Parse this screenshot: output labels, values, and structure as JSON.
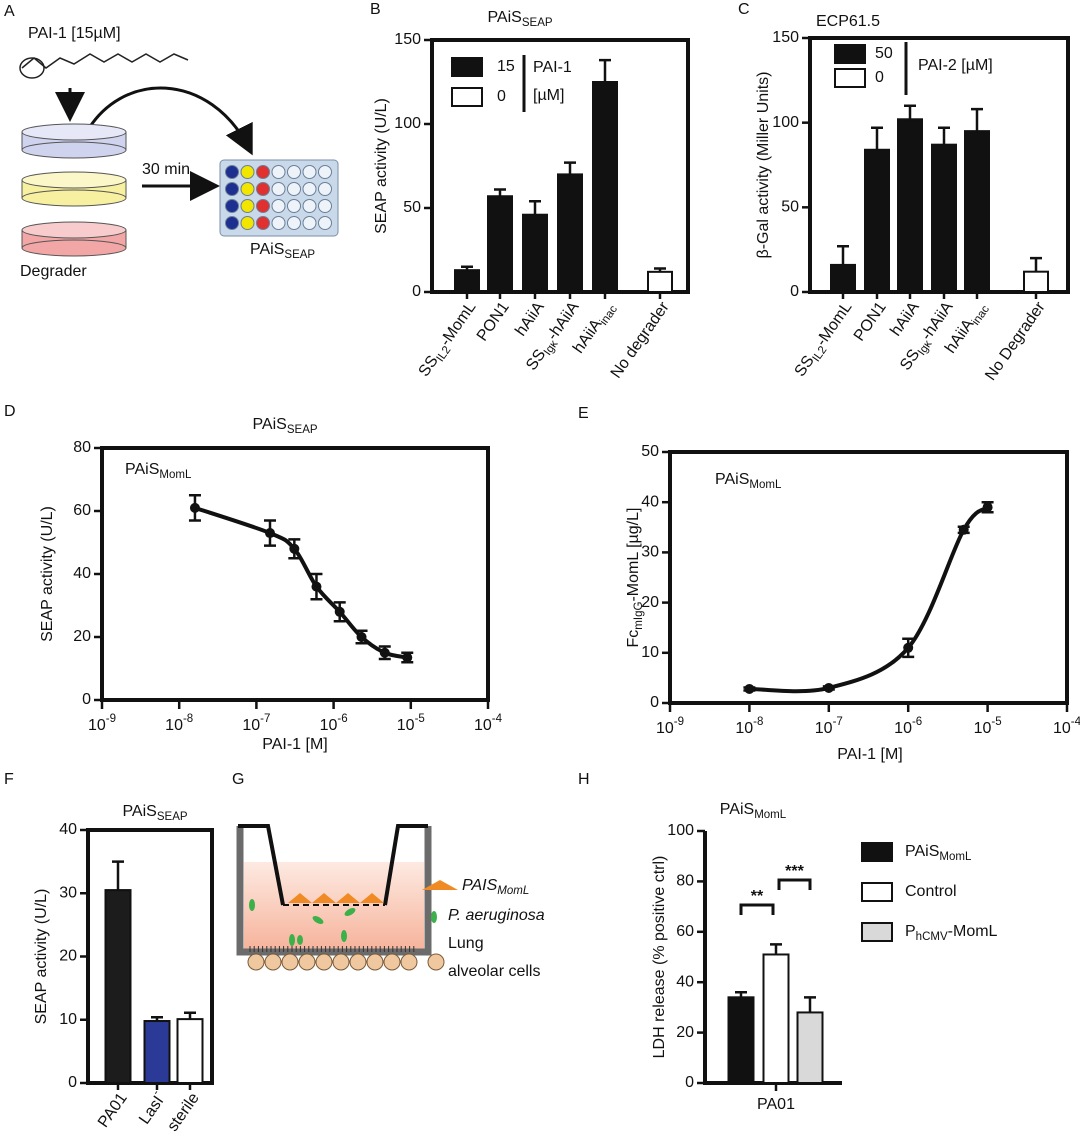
{
  "chart_data": [
    {
      "panel_label": "B",
      "type": "bar",
      "title": [
        {
          "text": "PAiS"
        },
        {
          "sub": "SEAP"
        }
      ],
      "ylabel": "SEAP activity (U/L)",
      "categories": [
        [
          {
            "text": "SS"
          },
          {
            "sub": "IL2"
          },
          {
            "text": "-MomL"
          }
        ],
        "PON1",
        "hAiiA",
        [
          {
            "text": "SS"
          },
          {
            "sub": "Igκ"
          },
          {
            "text": "-hAiiA"
          }
        ],
        [
          {
            "text": "hAiiA"
          },
          {
            "sub": "inac"
          }
        ],
        "No degrader"
      ],
      "series": [
        {
          "name": "15",
          "color": "#111111",
          "values": [
            13,
            57,
            46,
            70,
            125,
            null
          ],
          "errors": [
            2,
            4,
            8,
            7,
            13,
            null
          ]
        },
        {
          "name": "0",
          "color": "#ffffff",
          "values": [
            null,
            null,
            null,
            null,
            null,
            12
          ],
          "errors": [
            null,
            null,
            null,
            null,
            null,
            2
          ]
        }
      ],
      "legend_title": [
        "PAI-1",
        "[µM]"
      ],
      "ylim": [
        0,
        150
      ],
      "yticks": [
        0,
        50,
        100,
        150
      ]
    },
    {
      "panel_label": "C",
      "type": "bar",
      "title": "ECP61.5",
      "ylabel": "β-Gal activity (Miller Units)",
      "categories": [
        [
          {
            "text": "SS"
          },
          {
            "sub": "IL2"
          },
          {
            "text": "-MomL"
          }
        ],
        "PON1",
        "hAiiA",
        [
          {
            "text": "SS"
          },
          {
            "sub": "Igκ"
          },
          {
            "text": "-hAiiA"
          }
        ],
        [
          {
            "text": "hAiiA"
          },
          {
            "sub": "inac"
          }
        ],
        "No Degrader"
      ],
      "series": [
        {
          "name": "50",
          "color": "#111111",
          "values": [
            16,
            84,
            102,
            87,
            95,
            null
          ],
          "errors": [
            11,
            13,
            8,
            10,
            13,
            null
          ]
        },
        {
          "name": "0",
          "color": "#ffffff",
          "values": [
            null,
            null,
            null,
            null,
            null,
            12
          ],
          "errors": [
            null,
            null,
            null,
            null,
            null,
            8
          ]
        }
      ],
      "legend_title": "PAI-2  [µM]",
      "ylim": [
        0,
        150
      ],
      "yticks": [
        0,
        50,
        100,
        150
      ]
    },
    {
      "panel_label": "D",
      "type": "line",
      "title": [
        {
          "text": "PAiS"
        },
        {
          "sub": "SEAP"
        }
      ],
      "annotation": [
        {
          "text": "PAiS"
        },
        {
          "sub": "MomL"
        }
      ],
      "xlabel": "PAI-1 [M]",
      "ylabel": "SEAP activity (U/L)",
      "xlog": true,
      "x": [
        1.6e-08,
        1.5e-07,
        3.1e-07,
        6e-07,
        1.2e-06,
        2.3e-06,
        4.6e-06,
        9e-06
      ],
      "values": [
        61,
        53,
        48,
        36,
        28,
        20,
        15,
        13.5
      ],
      "errors": [
        4,
        4,
        3,
        4,
        3,
        2,
        2,
        1.5
      ],
      "color": "#111111",
      "xlim": [
        1e-09,
        0.0001
      ],
      "xticks": [
        {
          "value": 1e-09,
          "label": [
            {
              "text": "10"
            },
            {
              "sup": "-9"
            }
          ]
        },
        {
          "value": 1e-08,
          "label": [
            {
              "text": "10"
            },
            {
              "sup": "-8"
            }
          ]
        },
        {
          "value": 1e-07,
          "label": [
            {
              "text": "10"
            },
            {
              "sup": "-7"
            }
          ]
        },
        {
          "value": 1e-06,
          "label": [
            {
              "text": "10"
            },
            {
              "sup": "-6"
            }
          ]
        },
        {
          "value": 1e-05,
          "label": [
            {
              "text": "10"
            },
            {
              "sup": "-5"
            }
          ]
        },
        {
          "value": 0.0001,
          "label": [
            {
              "text": "10"
            },
            {
              "sup": "-4"
            }
          ]
        }
      ],
      "ylim": [
        0,
        80
      ],
      "yticks": [
        0,
        20,
        40,
        60,
        80
      ]
    },
    {
      "panel_label": "E",
      "type": "line",
      "annotation": [
        {
          "text": "PAiS"
        },
        {
          "sub": "MomL"
        }
      ],
      "xlabel": "PAI-1 [M]",
      "ylabel": [
        {
          "text": "Fc"
        },
        {
          "sub": "mIgG"
        },
        {
          "text": "-MomL [µg/L]"
        }
      ],
      "xlog": true,
      "x": [
        1e-08,
        1e-07,
        1e-06,
        5e-06,
        1e-05
      ],
      "values": [
        2.8,
        3,
        11,
        34.5,
        39
      ],
      "errors": [
        0.3,
        0.3,
        1.8,
        0.6,
        1
      ],
      "color": "#111111",
      "xlim": [
        1e-09,
        0.0001
      ],
      "xticks": [
        {
          "value": 1e-09,
          "label": [
            {
              "text": "10"
            },
            {
              "sup": "-9"
            }
          ]
        },
        {
          "value": 1e-08,
          "label": [
            {
              "text": "10"
            },
            {
              "sup": "-8"
            }
          ]
        },
        {
          "value": 1e-07,
          "label": [
            {
              "text": "10"
            },
            {
              "sup": "-7"
            }
          ]
        },
        {
          "value": 1e-06,
          "label": [
            {
              "text": "10"
            },
            {
              "sup": "-6"
            }
          ]
        },
        {
          "value": 1e-05,
          "label": [
            {
              "text": "10"
            },
            {
              "sup": "-5"
            }
          ]
        },
        {
          "value": 0.0001,
          "label": [
            {
              "text": "10"
            },
            {
              "sup": "-4"
            }
          ]
        }
      ],
      "ylim": [
        0,
        50
      ],
      "yticks": [
        0,
        10,
        20,
        30,
        40,
        50
      ]
    },
    {
      "panel_label": "F",
      "type": "bar",
      "title": [
        {
          "text": "PAiS"
        },
        {
          "sub": "SEAP"
        }
      ],
      "ylabel": "SEAP activity (U/L)",
      "categories": [
        "PA01",
        [
          {
            "text": "LasI"
          },
          {
            "sup": "-"
          }
        ],
        "sterile"
      ],
      "values": [
        30.5,
        9.8,
        10.1
      ],
      "errors": [
        4.5,
        0.6,
        1
      ],
      "colors": [
        "#1c1c1c",
        "#2b3a96",
        "#ffffff"
      ],
      "ylim": [
        0,
        40
      ],
      "yticks": [
        0,
        10,
        20,
        30,
        40
      ]
    },
    {
      "panel_label": "H",
      "type": "bar",
      "title": [
        {
          "text": "PAiS"
        },
        {
          "sub": "MomL"
        }
      ],
      "ylabel": "LDH release  (% positive ctrl)",
      "categories": [
        "PA01"
      ],
      "series": [
        {
          "name": [
            {
              "text": "PAiS"
            },
            {
              "sub": "MomL"
            }
          ],
          "color": "#111111",
          "values": [
            34
          ],
          "errors": [
            2
          ]
        },
        {
          "name": "Control",
          "color": "#ffffff",
          "values": [
            51
          ],
          "errors": [
            4
          ]
        },
        {
          "name": [
            {
              "text": "P"
            },
            {
              "sub": "hCMV"
            },
            {
              "text": "-MomL"
            }
          ],
          "color": "#d9d9d9",
          "values": [
            28
          ],
          "errors": [
            6
          ]
        }
      ],
      "annotations": [
        "**",
        "***"
      ],
      "ylim": [
        0,
        100
      ],
      "yticks": [
        0,
        20,
        40,
        60,
        80,
        100
      ]
    }
  ],
  "diagrams": {
    "A": {
      "panel_label": "A",
      "compound": "PAI-1 [15µM]",
      "time": "30 min",
      "degrader": "Degrader",
      "plate": [
        {
          "text": "PAiS"
        },
        {
          "sub": "SEAP"
        }
      ]
    },
    "G": {
      "panel_label": "G",
      "sensor": [
        {
          "text": "PAIS"
        },
        {
          "sub": "MomL"
        }
      ],
      "bacteria": "P. aeruginosa",
      "cells": [
        "Lung",
        "alveolar cells"
      ]
    }
  }
}
